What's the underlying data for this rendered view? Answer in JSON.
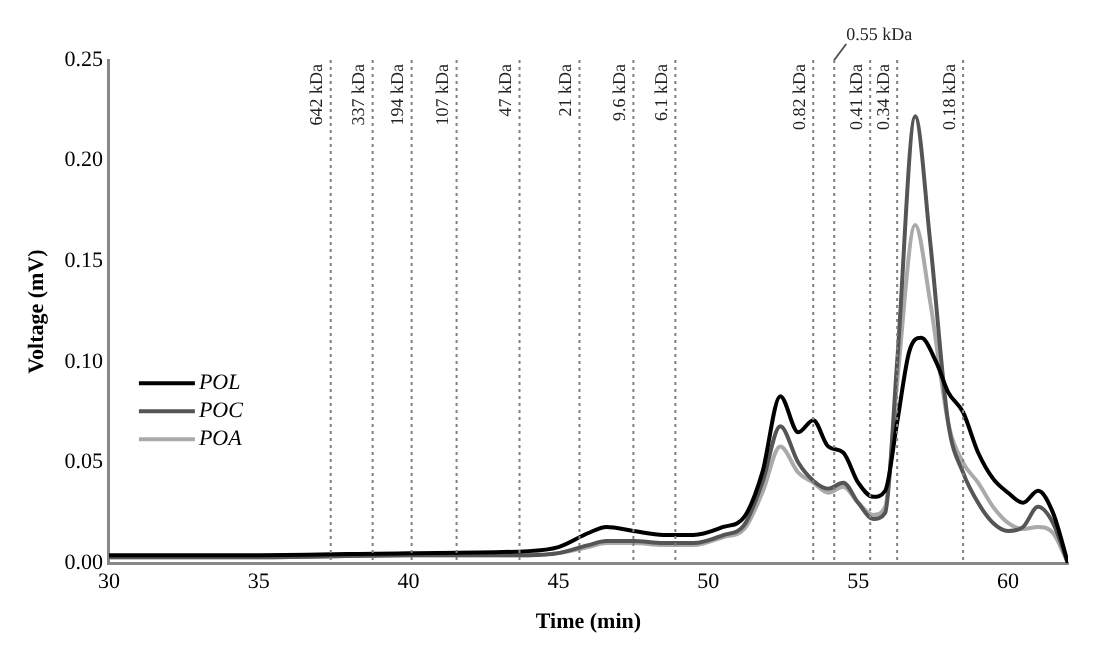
{
  "chart_data": {
    "type": "line",
    "xlabel": "Time (min)",
    "ylabel": "Voltage (mV)",
    "xlim": [
      30,
      62
    ],
    "xticks": [
      30,
      35,
      40,
      45,
      50,
      55,
      60
    ],
    "ylim": [
      0,
      0.25
    ],
    "yticks": [
      {
        "value": 0,
        "label": "0.00"
      },
      {
        "value": 0.05,
        "label": "0.05"
      },
      {
        "value": 0.1,
        "label": "0.10"
      },
      {
        "value": 0.15,
        "label": "0.15"
      },
      {
        "value": 0.2,
        "label": "0.20"
      },
      {
        "value": 0.25,
        "label": "0.25"
      }
    ],
    "grid": false,
    "legend": "bottom left",
    "marker": "none",
    "line_style": "solid",
    "series": [
      {
        "name": "POL",
        "color": "#000000",
        "x": [
          30,
          35,
          40,
          44,
          45,
          46,
          46.6,
          47.5,
          48.5,
          49.5,
          50.5,
          51.2,
          51.8,
          52.4,
          53,
          53.5,
          54,
          54.5,
          55,
          55.5,
          55.9,
          56.3,
          56.7,
          57.1,
          57.6,
          58,
          58.5,
          59,
          59.5,
          60,
          60.5,
          61,
          61.5,
          62
        ],
        "values": [
          0.004,
          0.004,
          0.005,
          0.006,
          0.008,
          0.015,
          0.018,
          0.016,
          0.014,
          0.014,
          0.018,
          0.023,
          0.045,
          0.083,
          0.065,
          0.071,
          0.058,
          0.055,
          0.04,
          0.033,
          0.036,
          0.07,
          0.105,
          0.112,
          0.1,
          0.085,
          0.075,
          0.055,
          0.042,
          0.035,
          0.03,
          0.036,
          0.025,
          0
        ]
      },
      {
        "name": "POC",
        "color": "#555555",
        "x": [
          30,
          35,
          40,
          44,
          45,
          46,
          46.6,
          47.5,
          48.5,
          49.5,
          50.5,
          51.2,
          51.8,
          52.4,
          53,
          53.5,
          54,
          54.5,
          55,
          55.5,
          55.9,
          56.3,
          56.9,
          57.4,
          58,
          58.5,
          59,
          59.5,
          60,
          60.5,
          61,
          61.5,
          62
        ],
        "values": [
          0.003,
          0.003,
          0.004,
          0.004,
          0.005,
          0.009,
          0.011,
          0.011,
          0.01,
          0.01,
          0.014,
          0.019,
          0.04,
          0.068,
          0.05,
          0.041,
          0.037,
          0.04,
          0.03,
          0.022,
          0.025,
          0.1,
          0.222,
          0.16,
          0.07,
          0.045,
          0.03,
          0.02,
          0.016,
          0.018,
          0.028,
          0.02,
          0
        ]
      },
      {
        "name": "POA",
        "color": "#aaaaaa",
        "x": [
          30,
          35,
          40,
          44,
          45,
          46,
          46.6,
          47.5,
          48.5,
          49.5,
          50.5,
          51.2,
          51.8,
          52.4,
          53,
          53.5,
          54,
          54.5,
          55,
          55.5,
          55.9,
          56.3,
          56.9,
          57.4,
          58,
          58.5,
          59,
          59.5,
          60,
          60.5,
          61,
          61.5,
          62
        ],
        "values": [
          0.003,
          0.003,
          0.004,
          0.004,
          0.005,
          0.008,
          0.01,
          0.01,
          0.009,
          0.009,
          0.013,
          0.017,
          0.035,
          0.058,
          0.045,
          0.04,
          0.035,
          0.038,
          0.03,
          0.024,
          0.028,
          0.09,
          0.168,
          0.13,
          0.07,
          0.05,
          0.04,
          0.028,
          0.02,
          0.017,
          0.018,
          0.015,
          0
        ]
      }
    ],
    "ref_lines": [
      {
        "axis": "x",
        "value": 37.4,
        "label": "642 kDa",
        "color": "#808080",
        "line_style": "dotted"
      },
      {
        "axis": "x",
        "value": 38.8,
        "label": "337 kDa",
        "color": "#808080",
        "line_style": "dotted"
      },
      {
        "axis": "x",
        "value": 40.1,
        "label": "194 kDa",
        "color": "#808080",
        "line_style": "dotted"
      },
      {
        "axis": "x",
        "value": 41.6,
        "label": "107 kDa",
        "color": "#808080",
        "line_style": "dotted"
      },
      {
        "axis": "x",
        "value": 43.7,
        "label": "47 kDa",
        "color": "#808080",
        "line_style": "dotted"
      },
      {
        "axis": "x",
        "value": 45.7,
        "label": "21 kDa",
        "color": "#808080",
        "line_style": "dotted"
      },
      {
        "axis": "x",
        "value": 47.5,
        "label": "9.6 kDa",
        "color": "#808080",
        "line_style": "dotted"
      },
      {
        "axis": "x",
        "value": 48.9,
        "label": "6.1 kDa",
        "color": "#808080",
        "line_style": "dotted"
      },
      {
        "axis": "x",
        "value": 53.5,
        "label": "0.82 kDa",
        "color": "#808080",
        "line_style": "dotted"
      },
      {
        "axis": "x",
        "value": 54.2,
        "label": "0.55 kDa",
        "color": "#808080",
        "line_style": "dotted"
      },
      {
        "axis": "x",
        "value": 55.4,
        "label": "0.41 kDa",
        "color": "#808080",
        "line_style": "dotted"
      },
      {
        "axis": "x",
        "value": 56.3,
        "label": "0.34 kDa",
        "color": "#808080",
        "line_style": "dotted"
      },
      {
        "axis": "x",
        "value": 58.5,
        "label": "0.18 kDa",
        "color": "#808080",
        "line_style": "dotted"
      }
    ]
  }
}
